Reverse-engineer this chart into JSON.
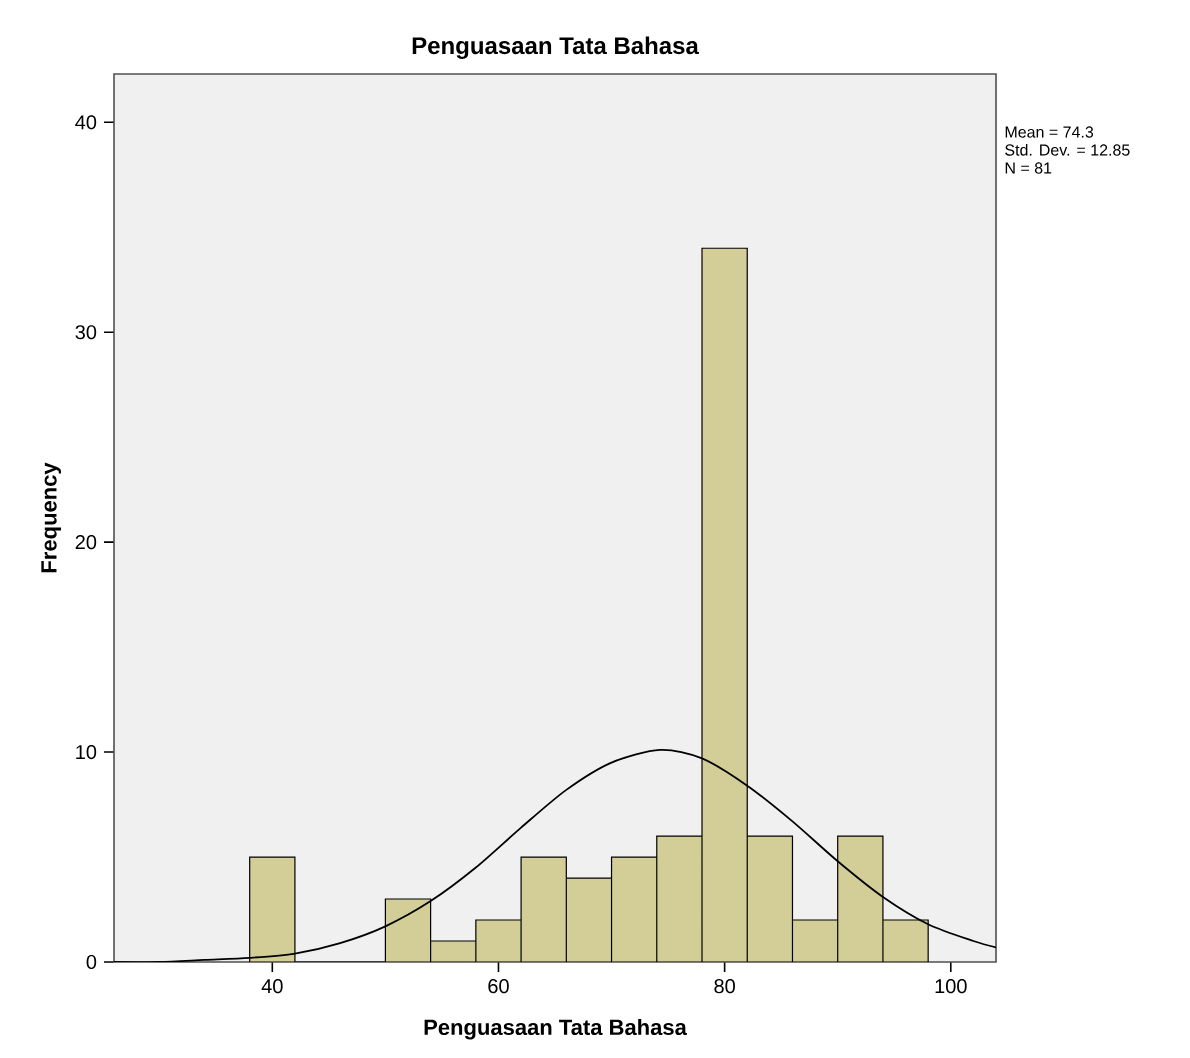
{
  "chart_data": {
    "type": "histogram",
    "title": "Penguasaan Tata Bahasa",
    "xlabel": "Penguasaan Tata Bahasa",
    "ylabel": "Frequency",
    "bins": [
      38,
      42,
      46,
      50,
      54,
      58,
      62,
      66,
      70,
      74,
      78,
      82,
      86,
      90,
      94,
      98
    ],
    "values": [
      5,
      0,
      0,
      3,
      1,
      2,
      5,
      4,
      5,
      6,
      34,
      6,
      2,
      6,
      2
    ],
    "color": "#d3ce97",
    "series": [
      {
        "type": "line",
        "color": "#000000",
        "x": [
          26,
          30,
          34,
          38,
          42,
          46,
          50,
          54,
          58,
          62,
          66,
          70,
          74.3,
          78,
          82,
          86,
          90,
          94,
          98,
          102,
          104
        ],
        "values": [
          0,
          0,
          0.1,
          0.2,
          0.4,
          0.9,
          1.7,
          2.9,
          4.5,
          6.4,
          8.2,
          9.5,
          10.1,
          9.7,
          8.4,
          6.7,
          4.8,
          3.1,
          1.8,
          1,
          0.7
        ]
      }
    ],
    "xlim": [
      26,
      104
    ],
    "ylim": [
      0,
      42.3
    ],
    "xticks": [
      40,
      60,
      80,
      100
    ],
    "yticks": [
      0,
      10,
      20,
      30,
      40
    ],
    "grid": false,
    "annotations": [
      "Mean = 74.3",
      "Std. Dev. = 12.85",
      "N = 81"
    ]
  }
}
